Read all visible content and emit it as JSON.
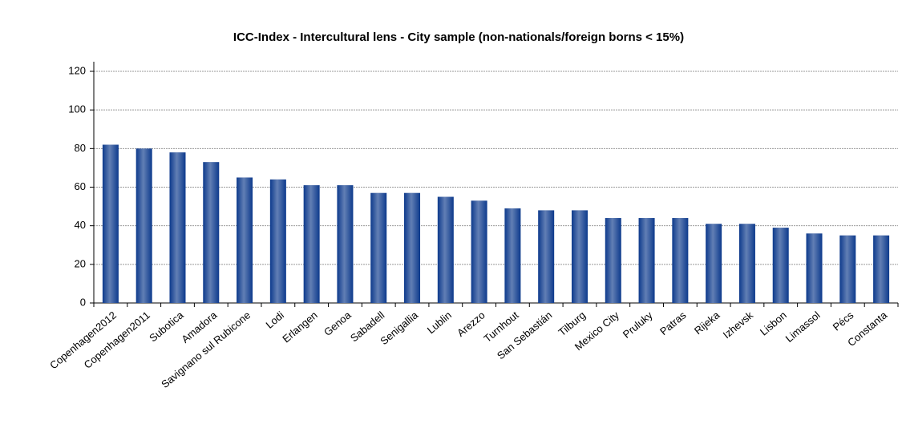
{
  "chart_data": {
    "type": "bar",
    "title": "ICC-Index - Intercultural lens -  City sample (non-nationals/foreign borns < 15%)",
    "categories": [
      "Copenhagen2012",
      "Copenhagen2011",
      "Subotica",
      "Amadora",
      "Savignano sul Rubicone",
      "Lodi",
      "Erlangen",
      "Genoa",
      "Sabadell",
      "Senigallia",
      "Lublin",
      "Arezzo",
      "Turnhout",
      "San Sebastián",
      "Tilburg",
      "Mexico City",
      "Pruluky",
      "Patras",
      "Rijeka",
      "Izhevsk",
      "Lisbon",
      "Limassol",
      "Pécs",
      "Constanta"
    ],
    "values": [
      82,
      80,
      78,
      73,
      65,
      64,
      61,
      61,
      57,
      57,
      55,
      53,
      49,
      48,
      48,
      44,
      44,
      44,
      41,
      41,
      39,
      36,
      35,
      35
    ],
    "color": "#0d3a8c",
    "ylim": [
      0,
      120
    ],
    "yticks": [
      0,
      20,
      40,
      60,
      80,
      100,
      120
    ],
    "grid": true
  }
}
